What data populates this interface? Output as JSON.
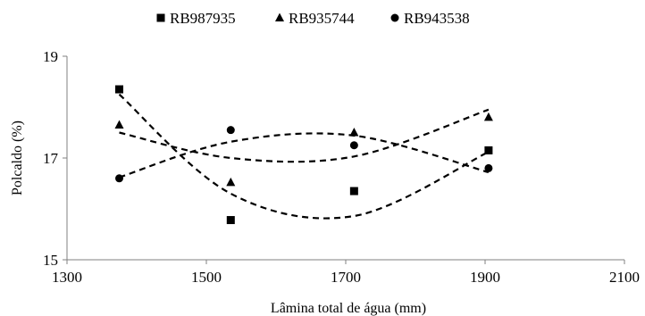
{
  "chart_data": {
    "type": "scatter",
    "title": "",
    "xlabel": "Lâmina  total de água (mm)",
    "ylabel": "Polcaldo (%)",
    "xlim": [
      1300,
      2100
    ],
    "ylim": [
      15,
      19
    ],
    "xticks": [
      1300,
      1500,
      1700,
      1900,
      2100
    ],
    "yticks": [
      15,
      17,
      19
    ],
    "legend_position": "top",
    "series": [
      {
        "name": "RB987935",
        "marker": "square",
        "x": [
          1375,
          1535,
          1712,
          1905
        ],
        "y": [
          18.35,
          15.78,
          16.35,
          17.15
        ],
        "trend_y": [
          18.25,
          16.3,
          15.86,
          17.12
        ]
      },
      {
        "name": "RB935744",
        "marker": "triangle",
        "x": [
          1375,
          1535,
          1712,
          1905
        ],
        "y": [
          17.65,
          16.52,
          17.5,
          17.8
        ],
        "trend_y": [
          17.5,
          17.0,
          17.03,
          17.95
        ]
      },
      {
        "name": "RB943538",
        "marker": "circle",
        "x": [
          1375,
          1535,
          1712,
          1905
        ],
        "y": [
          16.6,
          17.55,
          17.25,
          16.8
        ],
        "trend_y": [
          16.62,
          17.32,
          17.44,
          16.72
        ]
      }
    ],
    "trendline": "dashed",
    "colors": {
      "marks": "#000000",
      "axis": "#808080"
    }
  }
}
